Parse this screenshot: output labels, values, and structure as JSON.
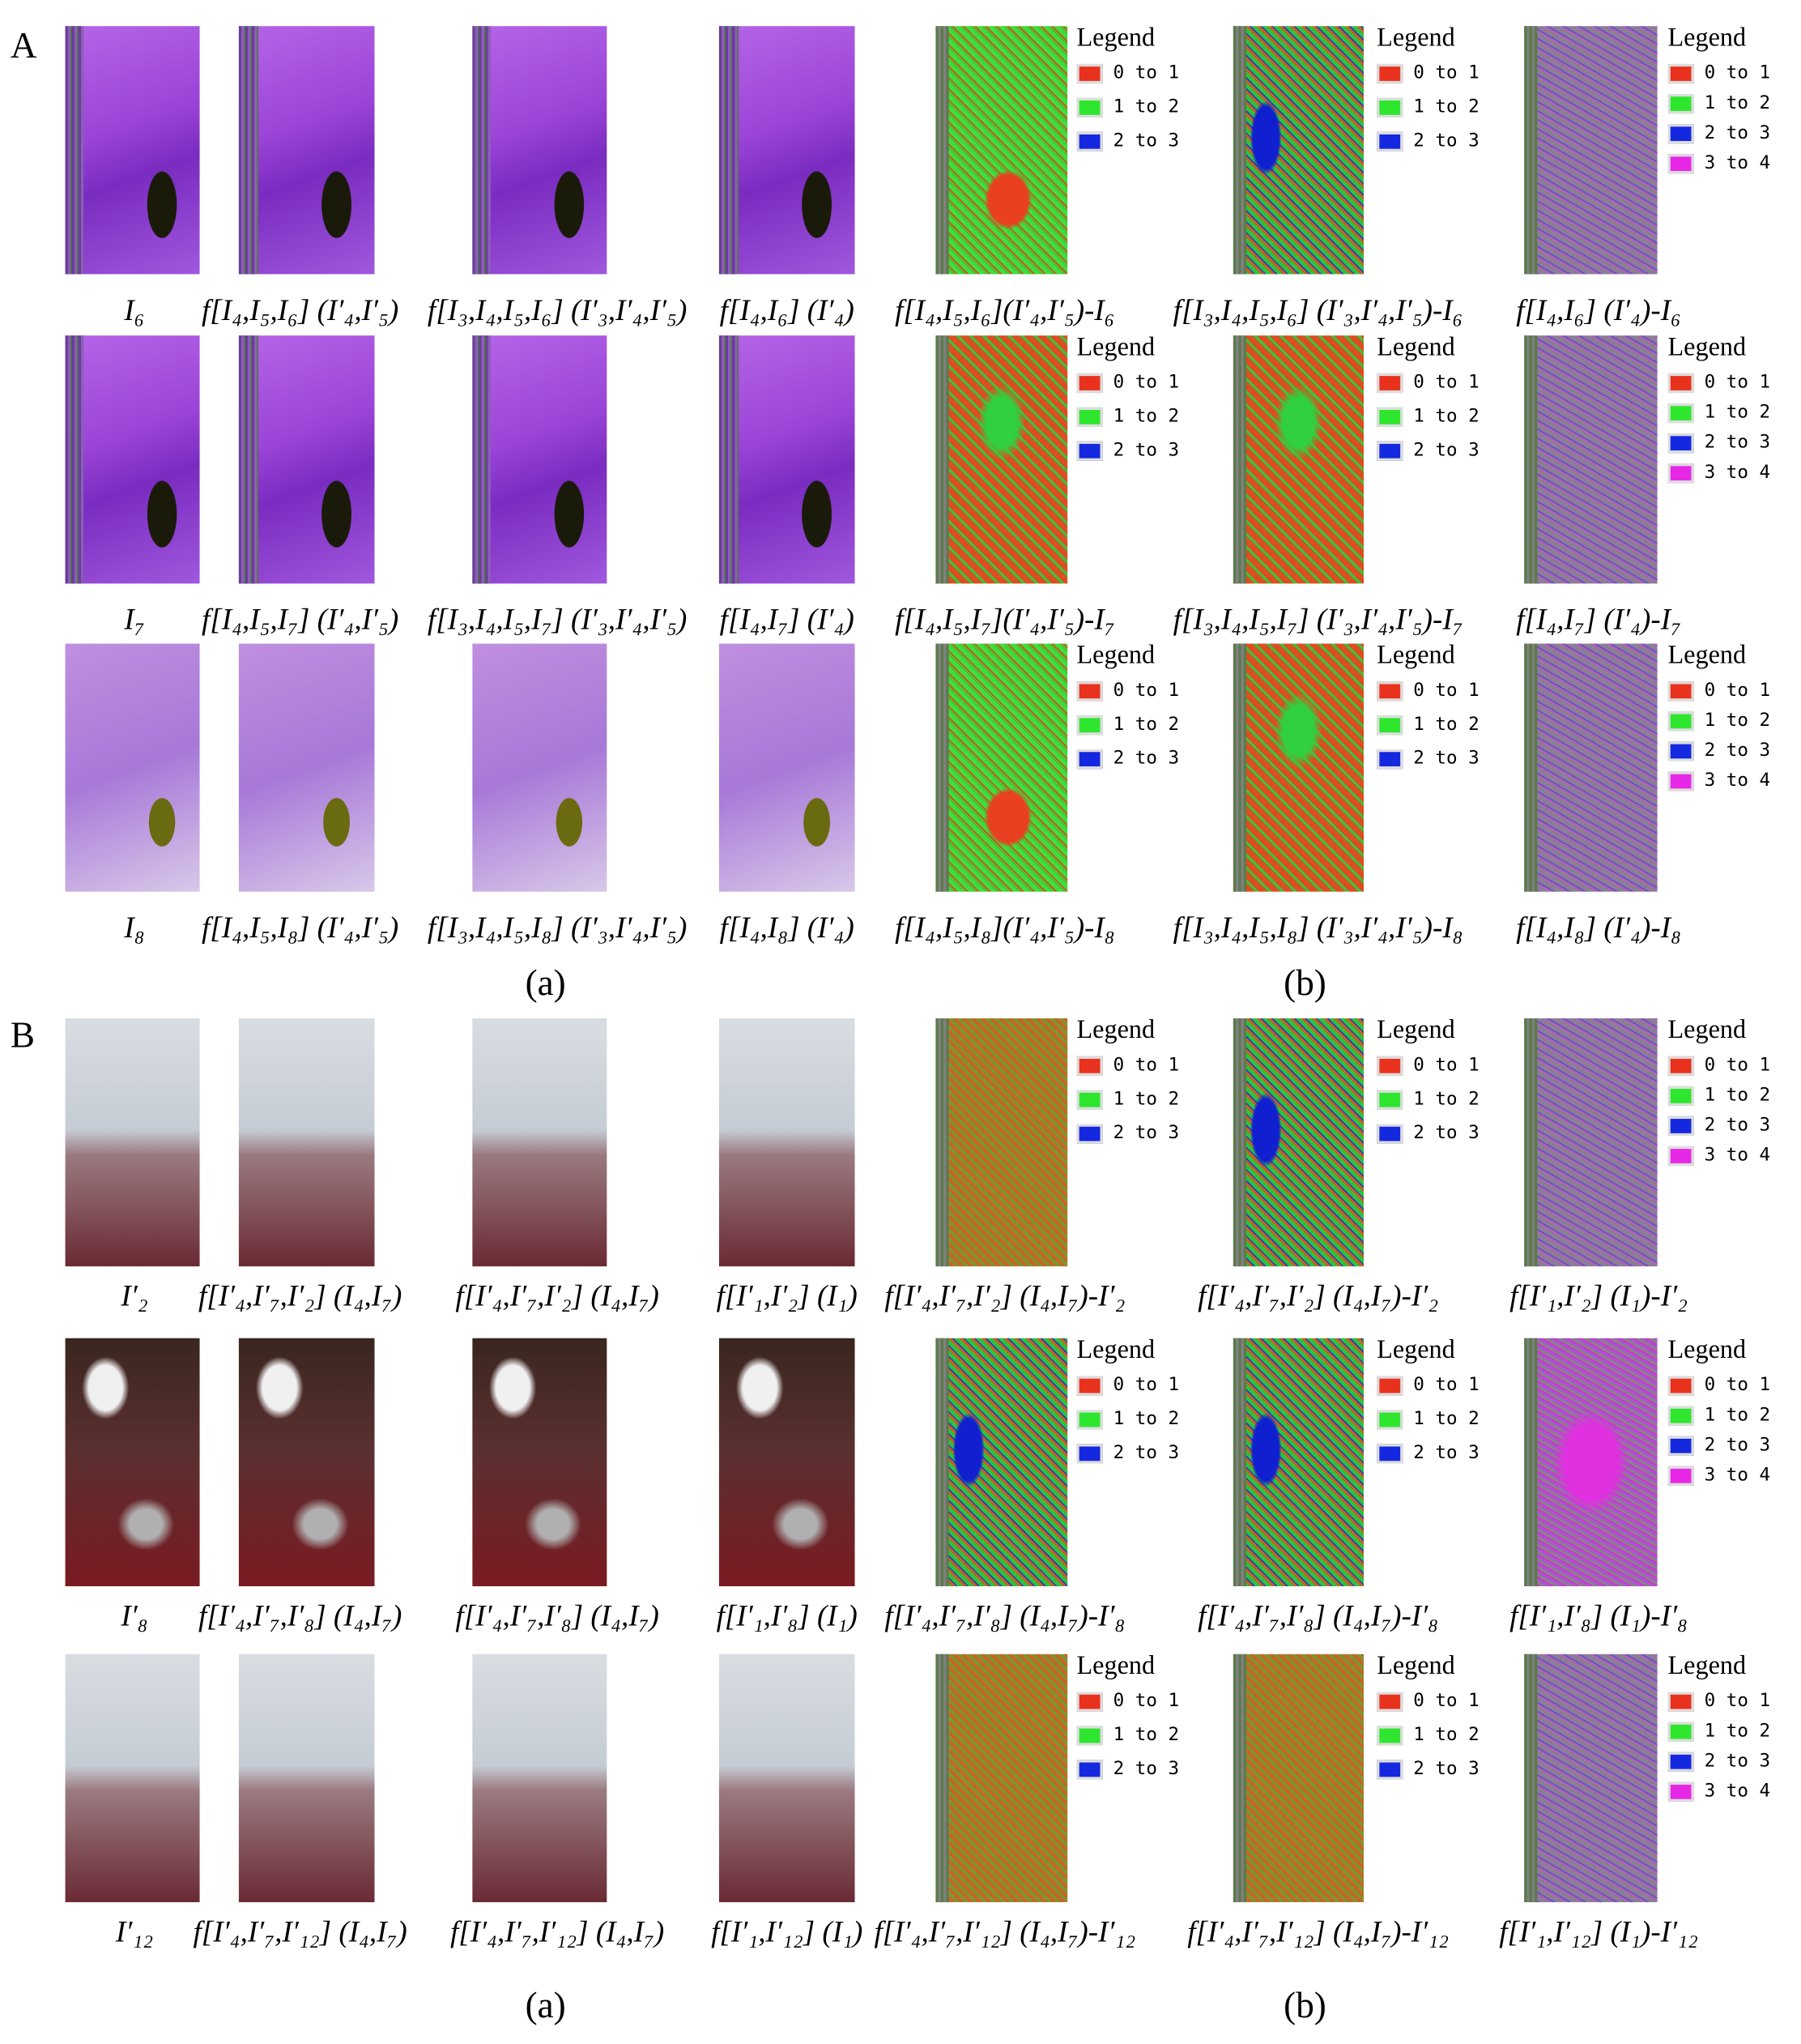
{
  "panels": [
    {
      "label": "A",
      "rows": [
        {
          "captions": [
            "I₆",
            "f[I₄,I₅,I₆] (I′₄,I′₅)",
            "f[I₃,I₄,I₅,I₆] (I′₃,I′₄,I′₅)",
            "f[I₄,I₆] (I′₄)",
            "f[I₄,I₅,I₆](I′₄,I′₅)-I₆",
            "f[I₃,I₄,I₅,I₆] (I′₃,I′₄,I′₅)-I₆",
            "f[I₄,I₆] (I′₄)-I₆"
          ]
        },
        {
          "captions": [
            "I₇",
            "f[I₄,I₅,I₇] (I′₄,I′₅)",
            "f[I₃,I₄,I₅,I₇] (I′₃,I′₄,I′₅)",
            "f[I₄,I₇] (I′₄)",
            "f[I₄,I₅,I₇](I′₄,I′₅)-I₇",
            "f[I₃,I₄,I₅,I₇] (I′₃,I′₄,I′₅)-I₇",
            "f[I₄,I₇] (I′₄)-I₇"
          ]
        },
        {
          "captions": [
            "I₈",
            "f[I₄,I₅,I₈] (I′₄,I′₅)",
            "f[I₃,I₄,I₅,I₈] (I′₃,I′₄,I′₅)",
            "f[I₄,I₈] (I′₄)",
            "f[I₄,I₅,I₈](I′₄,I′₅)-I₈",
            "f[I₃,I₄,I₅,I₈] (I′₃,I′₄,I′₅)-I₈",
            "f[I₄,I₈] (I′₄)-I₈"
          ]
        }
      ],
      "subcaptions": [
        "(a)",
        "(b)"
      ]
    },
    {
      "label": "B",
      "rows": [
        {
          "captions": [
            "I′₂",
            "f[I′₄,I′₇,I′₂] (I₄,I₇)",
            "f[I′₄,I′₇,I′₂] (I₄,I₇)",
            "f[I′₁,I′₂] (I₁)",
            "f[I′₄,I′₇,I′₂] (I₄,I₇)-I′₂",
            "f[I′₄,I′₇,I′₂] (I₄,I₇)-I′₂",
            "f[I′₁,I′₂] (I₁)-I′₂"
          ]
        },
        {
          "captions": [
            "I′₈",
            "f[I′₄,I′₇,I′₈] (I₄,I₇)",
            "f[I′₄,I′₇,I′₈] (I₄,I₇)",
            "f[I′₁,I′₈] (I₁)",
            "f[I′₄,I′₇,I′₈] (I₄,I₇)-I′₈",
            "f[I′₄,I′₇,I′₈] (I₄,I₇)-I′₈",
            "f[I′₁,I′₈] (I₁)-I′₈"
          ]
        },
        {
          "captions": [
            "I′₁₂",
            "f[I′₄,I′₇,I′₁₂] (I₄,I₇)",
            "f[I′₄,I′₇,I′₁₂] (I₄,I₇)",
            "f[I′₁,I′₁₂] (I₁)",
            "f[I′₄,I′₇,I′₁₂] (I₄,I₇)-I′₁₂",
            "f[I′₄,I′₇,I′₁₂] (I₄,I₇)-I′₁₂",
            "f[I′₁,I′₁₂] (I₁)-I′₁₂"
          ]
        }
      ],
      "subcaptions": [
        "(a)",
        "(b)"
      ]
    }
  ],
  "legend": {
    "title": "Legend",
    "items": [
      {
        "label": "0 to 1",
        "color": "#e8321e"
      },
      {
        "label": "1 to 2",
        "color": "#2ee62e"
      },
      {
        "label": "2 to 3",
        "color": "#1428e0"
      },
      {
        "label": "3 to 4",
        "color": "#e628e6"
      }
    ]
  }
}
